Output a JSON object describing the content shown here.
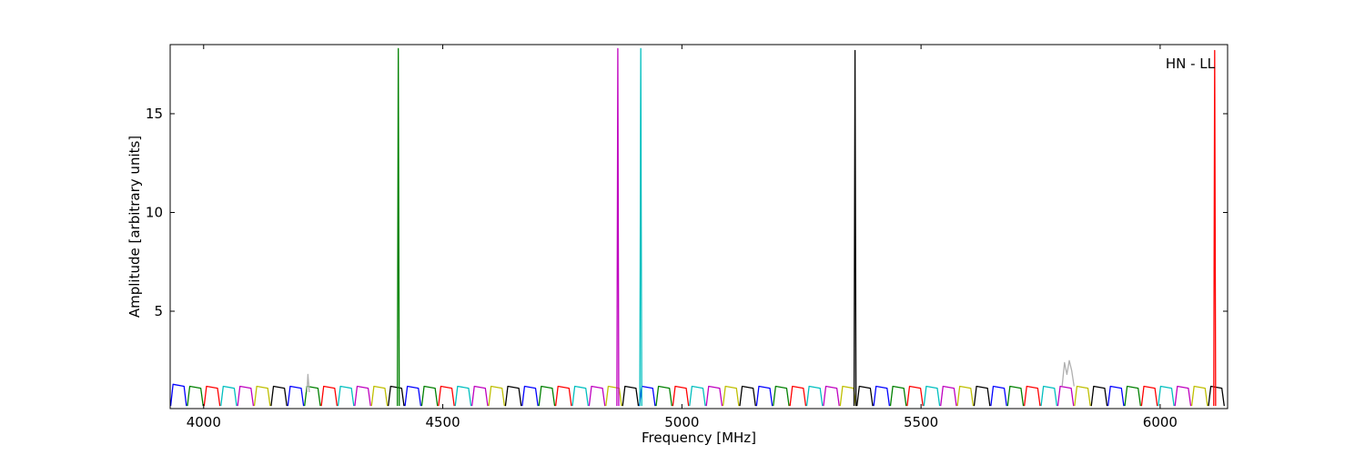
{
  "chart_data": {
    "type": "line",
    "xlabel": "Frequency [MHz]",
    "ylabel": "Amplitude [arbitrary units]",
    "annotation": "HN - LL",
    "xlim": [
      3930,
      6141
    ],
    "ylim": [
      0.07,
      18.5
    ],
    "xticks": [
      4000,
      4500,
      5000,
      5500,
      6000
    ],
    "yticks": [
      5,
      10,
      15
    ],
    "series": [
      {
        "color": "#0000ff",
        "x": [
          3931,
          3936,
          3959,
          3964,
          null,
          4176,
          4181,
          4204,
          4209,
          null,
          4421,
          4426,
          4449,
          4454,
          null,
          4666,
          4671,
          4694,
          4699,
          null,
          4911,
          4916,
          4939,
          4944,
          null,
          5156,
          5161,
          5184,
          5189,
          null,
          5401,
          5406,
          5429,
          5434,
          null,
          5646,
          5651,
          5674,
          5679,
          null,
          5891,
          5896,
          5919,
          5924
        ],
        "values": [
          0.2,
          1.3,
          1.2,
          0.2,
          null,
          0.2,
          1.2,
          1.1,
          0.2,
          null,
          0.2,
          1.2,
          1.1,
          0.2,
          null,
          0.2,
          1.2,
          1.1,
          0.2,
          null,
          0.2,
          1.2,
          1.1,
          0.2,
          null,
          0.2,
          1.2,
          1.1,
          0.2,
          null,
          0.2,
          1.2,
          1.1,
          0.2,
          null,
          0.2,
          1.2,
          1.1,
          0.2,
          null,
          0.2,
          1.2,
          1.1,
          0.2
        ]
      },
      {
        "color": "#008000",
        "x": [
          3966,
          3971,
          3994,
          3999,
          null,
          4211,
          4216,
          4239,
          4244,
          null,
          4456,
          4461,
          4484,
          4489,
          null,
          4701,
          4706,
          4729,
          4734,
          null,
          4946,
          4951,
          4974,
          4979,
          null,
          5191,
          5196,
          5219,
          5224,
          null,
          5436,
          5441,
          5464,
          5469,
          null,
          5681,
          5686,
          5709,
          5714,
          null,
          5926,
          5931,
          5954,
          5959
        ],
        "values": [
          0.2,
          1.2,
          1.1,
          0.2,
          null,
          0.2,
          1.2,
          1.1,
          0.2,
          null,
          0.2,
          1.2,
          1.1,
          0.2,
          null,
          0.2,
          1.2,
          1.1,
          0.2,
          null,
          0.2,
          1.2,
          1.1,
          0.2,
          null,
          0.2,
          1.2,
          1.1,
          0.2,
          null,
          0.2,
          1.2,
          1.1,
          0.2,
          null,
          0.2,
          1.2,
          1.1,
          0.2,
          null,
          0.2,
          1.2,
          1.1,
          0.2
        ]
      },
      {
        "color": "#ff0000",
        "x": [
          4001,
          4006,
          4029,
          4034,
          null,
          4246,
          4251,
          4274,
          4279,
          null,
          4491,
          4496,
          4519,
          4524,
          null,
          4736,
          4741,
          4764,
          4769,
          null,
          4981,
          4986,
          5009,
          5014,
          null,
          5226,
          5231,
          5254,
          5259,
          null,
          5471,
          5476,
          5499,
          5504,
          null,
          5716,
          5721,
          5744,
          5749,
          null,
          5961,
          5966,
          5989,
          5994
        ],
        "values": [
          0.2,
          1.2,
          1.1,
          0.2,
          null,
          0.2,
          1.2,
          1.1,
          0.2,
          null,
          0.2,
          1.2,
          1.1,
          0.2,
          null,
          0.2,
          1.2,
          1.1,
          0.2,
          null,
          0.2,
          1.2,
          1.1,
          0.2,
          null,
          0.2,
          1.2,
          1.1,
          0.2,
          null,
          0.2,
          1.2,
          1.1,
          0.2,
          null,
          0.2,
          1.2,
          1.1,
          0.2,
          null,
          0.2,
          1.2,
          1.1,
          0.2
        ]
      },
      {
        "color": "#00bfbf",
        "x": [
          4036,
          4041,
          4064,
          4069,
          null,
          4281,
          4286,
          4309,
          4314,
          null,
          4526,
          4531,
          4554,
          4559,
          null,
          4771,
          4776,
          4799,
          4804,
          null,
          5016,
          5021,
          5044,
          5049,
          null,
          5261,
          5266,
          5289,
          5294,
          null,
          5506,
          5511,
          5534,
          5539,
          null,
          5751,
          5756,
          5779,
          5784,
          null,
          5996,
          6001,
          6024,
          6029
        ],
        "values": [
          0.2,
          1.2,
          1.1,
          0.2,
          null,
          0.2,
          1.2,
          1.1,
          0.2,
          null,
          0.2,
          1.2,
          1.1,
          0.2,
          null,
          0.2,
          1.2,
          1.1,
          0.2,
          null,
          0.2,
          1.2,
          1.1,
          0.2,
          null,
          0.2,
          1.2,
          1.1,
          0.2,
          null,
          0.2,
          1.2,
          1.1,
          0.2,
          null,
          0.2,
          1.2,
          1.1,
          0.2,
          null,
          0.2,
          1.2,
          1.1,
          0.2
        ]
      },
      {
        "color": "#bf00bf",
        "x": [
          4071,
          4076,
          4099,
          4104,
          null,
          4316,
          4321,
          4344,
          4349,
          null,
          4561,
          4566,
          4589,
          4594,
          null,
          4806,
          4811,
          4834,
          4839,
          null,
          5051,
          5056,
          5079,
          5084,
          null,
          5296,
          5301,
          5324,
          5329,
          null,
          5541,
          5546,
          5569,
          5574,
          null,
          5786,
          5791,
          5814,
          5819,
          null,
          6031,
          6036,
          6059,
          6064
        ],
        "values": [
          0.2,
          1.2,
          1.1,
          0.2,
          null,
          0.2,
          1.2,
          1.1,
          0.2,
          null,
          0.2,
          1.2,
          1.1,
          0.2,
          null,
          0.2,
          1.2,
          1.1,
          0.2,
          null,
          0.2,
          1.2,
          1.1,
          0.2,
          null,
          0.2,
          1.2,
          1.1,
          0.2,
          null,
          0.2,
          1.2,
          1.1,
          0.2,
          null,
          0.2,
          1.2,
          1.1,
          0.2,
          null,
          0.2,
          1.2,
          1.1,
          0.2
        ]
      },
      {
        "color": "#bfbf00",
        "x": [
          4106,
          4111,
          4134,
          4139,
          null,
          4351,
          4356,
          4379,
          4384,
          null,
          4596,
          4601,
          4624,
          4629,
          null,
          4841,
          4846,
          4869,
          4874,
          null,
          5086,
          5091,
          5114,
          5119,
          null,
          5331,
          5336,
          5359,
          5364,
          null,
          5576,
          5581,
          5604,
          5609,
          null,
          5821,
          5826,
          5849,
          5854,
          null,
          6066,
          6071,
          6094,
          6099
        ],
        "values": [
          0.2,
          1.2,
          1.1,
          0.2,
          null,
          0.2,
          1.2,
          1.1,
          0.2,
          null,
          0.2,
          1.2,
          1.1,
          0.2,
          null,
          0.2,
          1.2,
          1.1,
          0.2,
          null,
          0.2,
          1.2,
          1.1,
          0.2,
          null,
          0.2,
          1.2,
          1.1,
          0.2,
          null,
          0.2,
          1.2,
          1.1,
          0.2,
          null,
          0.2,
          1.2,
          1.1,
          0.2,
          null,
          0.2,
          1.2,
          1.1,
          0.2
        ]
      },
      {
        "color": "#000000",
        "x": [
          4141,
          4146,
          4169,
          4174,
          null,
          4386,
          4391,
          4414,
          4419,
          null,
          4631,
          4636,
          4659,
          4664,
          null,
          4876,
          4881,
          4904,
          4909,
          null,
          5121,
          5126,
          5149,
          5154,
          null,
          5366,
          5371,
          5394,
          5399,
          null,
          5611,
          5616,
          5639,
          5644,
          null,
          5856,
          5861,
          5884,
          5889,
          null,
          6101,
          6106,
          6129,
          6134
        ],
        "values": [
          0.2,
          1.2,
          1.1,
          0.2,
          null,
          0.2,
          1.2,
          1.1,
          0.2,
          null,
          0.2,
          1.2,
          1.1,
          0.2,
          null,
          0.2,
          1.2,
          1.1,
          0.2,
          null,
          0.2,
          1.2,
          1.1,
          0.2,
          null,
          0.2,
          1.2,
          1.1,
          0.2,
          null,
          0.2,
          1.2,
          1.1,
          0.2,
          null,
          0.2,
          1.2,
          1.1,
          0.2,
          null,
          0.2,
          1.2,
          1.1,
          0.2
        ]
      },
      {
        "color": "#b0b0b0",
        "x": [
          4216,
          4218,
          4221,
          null,
          5795,
          5800,
          5805,
          5810,
          5815,
          5820
        ],
        "values": [
          0.9,
          1.8,
          0.9,
          null,
          1.2,
          2.4,
          1.8,
          2.5,
          2.0,
          1.2
        ]
      },
      {
        "color": "#008000",
        "x": [
          4405,
          4407,
          4409
        ],
        "values": [
          0.2,
          18.3,
          0.2
        ]
      },
      {
        "color": "#bf00bf",
        "x": [
          4864,
          4866,
          4868
        ],
        "values": [
          0.2,
          18.3,
          0.2
        ]
      },
      {
        "color": "#00bfbf",
        "x": [
          4912,
          4914,
          4916
        ],
        "values": [
          0.2,
          18.3,
          0.2
        ]
      },
      {
        "color": "#000000",
        "x": [
          5360,
          5362,
          5364
        ],
        "values": [
          0.2,
          18.2,
          0.2
        ]
      },
      {
        "color": "#ff0000",
        "x": [
          6112,
          6114,
          6116
        ],
        "values": [
          0.2,
          18.2,
          0.2
        ]
      }
    ]
  }
}
